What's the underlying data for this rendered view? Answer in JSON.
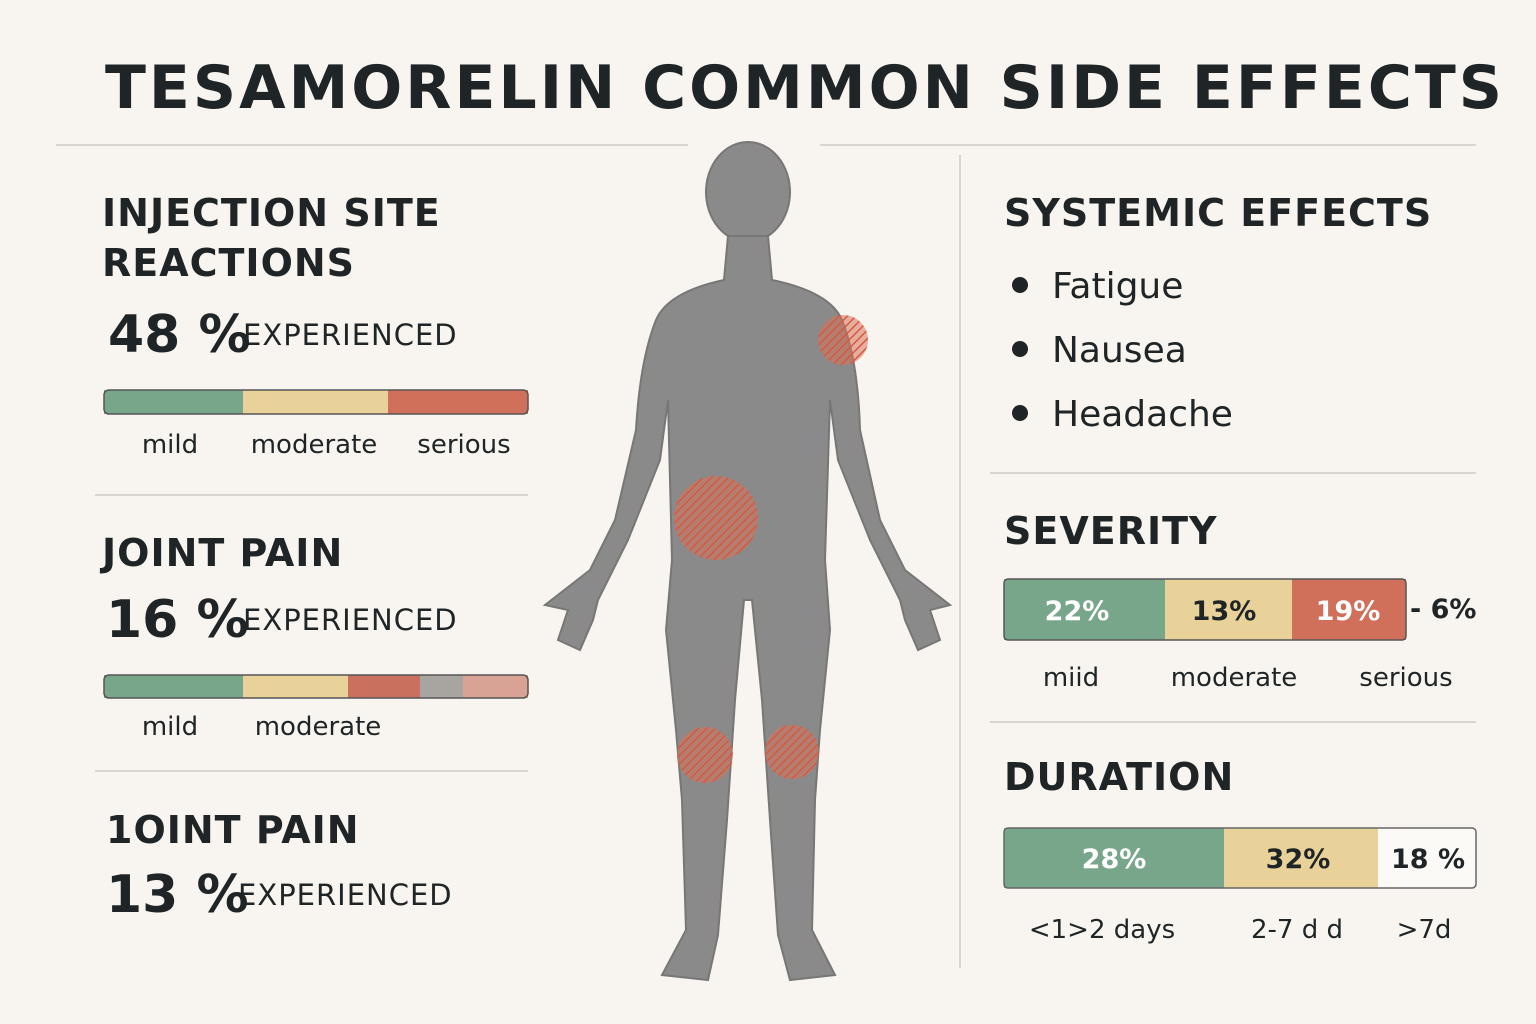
{
  "header": {
    "title": "TESAMORELIN COMMON SIDE EFFECTS"
  },
  "injection_site": {
    "title_lines": [
      "INJECTION SITE",
      "REACTIONS"
    ],
    "percent": "48 %",
    "note": "EXPERIENCED",
    "bar_labels": [
      "mild",
      "moderate",
      "serious"
    ]
  },
  "joint_pain": {
    "title": "JOINT PAIN",
    "percent": "16 %",
    "note": "EXPERIENCED",
    "bar_labels": [
      "mild",
      "moderate"
    ]
  },
  "joint_pain_2": {
    "title": "1OINT PAIN",
    "percent": "13 %",
    "note": "EXPERIENCED"
  },
  "systemic": {
    "title": "SYSTEMIC EFFECTS",
    "items": [
      "Fatigue",
      "Nausea",
      "Headache"
    ]
  },
  "severity": {
    "title": "SEVERITY",
    "segment_labels": [
      "22%",
      "13%",
      "19%"
    ],
    "extra": "- 6%",
    "bar_labels": [
      "miid",
      "moderate",
      "serious"
    ]
  },
  "duration": {
    "title": "DURATION",
    "segment_labels": [
      "28%",
      "32%",
      "18 %"
    ],
    "bar_labels": [
      "<1>2 days",
      "2-7 d d",
      ">7d"
    ]
  }
}
